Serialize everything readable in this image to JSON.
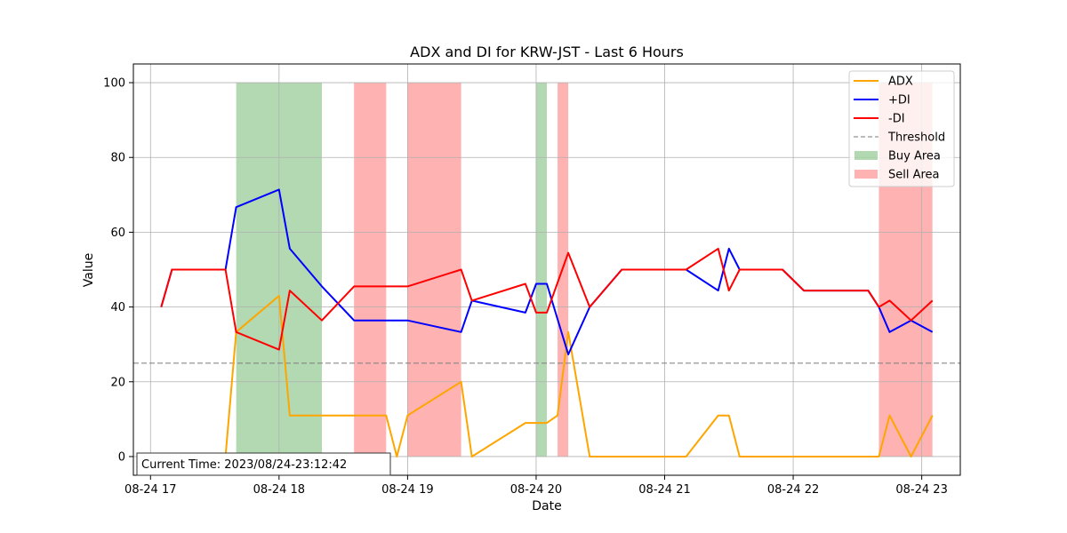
{
  "chart_data": {
    "type": "line",
    "title": "ADX and DI for KRW-JST - Last 6 Hours",
    "xlabel": "Date",
    "ylabel": "Value",
    "x_range": [
      "2023-08-24 16:52",
      "2023-08-24 23:18"
    ],
    "ylim": [
      -5,
      105
    ],
    "x_ticks": [
      {
        "t": "2023-08-24 17:00",
        "label": "08-24 17"
      },
      {
        "t": "2023-08-24 18:00",
        "label": "08-24 18"
      },
      {
        "t": "2023-08-24 19:00",
        "label": "08-24 19"
      },
      {
        "t": "2023-08-24 20:00",
        "label": "08-24 20"
      },
      {
        "t": "2023-08-24 21:00",
        "label": "08-24 21"
      },
      {
        "t": "2023-08-24 22:00",
        "label": "08-24 22"
      },
      {
        "t": "2023-08-24 23:00",
        "label": "08-24 23"
      }
    ],
    "y_ticks": [
      0,
      20,
      40,
      60,
      80,
      100
    ],
    "grid": true,
    "legend_position": "top-right",
    "series": [
      {
        "name": "ADX",
        "color": "#ffa500",
        "points": [
          [
            "2023-08-24 17:05",
            0
          ],
          [
            "2023-08-24 17:35",
            0
          ],
          [
            "2023-08-24 17:40",
            33.3
          ],
          [
            "2023-08-24 18:00",
            43.0
          ],
          [
            "2023-08-24 18:05",
            11.0
          ],
          [
            "2023-08-24 18:35",
            11.0
          ],
          [
            "2023-08-24 18:50",
            11.0
          ],
          [
            "2023-08-24 18:55",
            0
          ],
          [
            "2023-08-24 19:00",
            11.0
          ],
          [
            "2023-08-24 19:25",
            20.0
          ],
          [
            "2023-08-24 19:30",
            0
          ],
          [
            "2023-08-24 19:55",
            9.0
          ],
          [
            "2023-08-24 20:05",
            9.0
          ],
          [
            "2023-08-24 20:10",
            11.0
          ],
          [
            "2023-08-24 20:15",
            33.3
          ],
          [
            "2023-08-24 20:25",
            0
          ],
          [
            "2023-08-24 21:10",
            0
          ],
          [
            "2023-08-24 21:25",
            11.0
          ],
          [
            "2023-08-24 21:30",
            11.0
          ],
          [
            "2023-08-24 21:35",
            0
          ],
          [
            "2023-08-24 22:40",
            0
          ],
          [
            "2023-08-24 22:45",
            11.0
          ],
          [
            "2023-08-24 22:55",
            0
          ],
          [
            "2023-08-24 23:05",
            11.0
          ]
        ]
      },
      {
        "name": "+DI",
        "color": "#0000ff",
        "points": [
          [
            "2023-08-24 17:05",
            40.0
          ],
          [
            "2023-08-24 17:10",
            50.0
          ],
          [
            "2023-08-24 17:35",
            50.0
          ],
          [
            "2023-08-24 17:40",
            66.7
          ],
          [
            "2023-08-24 18:00",
            71.4
          ],
          [
            "2023-08-24 18:05",
            55.6
          ],
          [
            "2023-08-24 18:20",
            45.5
          ],
          [
            "2023-08-24 18:35",
            36.4
          ],
          [
            "2023-08-24 18:50",
            36.4
          ],
          [
            "2023-08-24 19:00",
            36.4
          ],
          [
            "2023-08-24 19:25",
            33.3
          ],
          [
            "2023-08-24 19:30",
            41.7
          ],
          [
            "2023-08-24 19:55",
            38.5
          ],
          [
            "2023-08-24 20:00",
            46.2
          ],
          [
            "2023-08-24 20:05",
            46.2
          ],
          [
            "2023-08-24 20:15",
            27.3
          ],
          [
            "2023-08-24 20:25",
            40.0
          ],
          [
            "2023-08-24 20:40",
            50.0
          ],
          [
            "2023-08-24 21:10",
            50.0
          ],
          [
            "2023-08-24 21:25",
            44.4
          ],
          [
            "2023-08-24 21:30",
            55.6
          ],
          [
            "2023-08-24 21:35",
            50.0
          ],
          [
            "2023-08-24 21:55",
            50.0
          ],
          [
            "2023-08-24 22:05",
            44.4
          ],
          [
            "2023-08-24 22:35",
            44.4
          ],
          [
            "2023-08-24 22:40",
            40.0
          ],
          [
            "2023-08-24 22:45",
            33.3
          ],
          [
            "2023-08-24 22:55",
            36.4
          ],
          [
            "2023-08-24 23:05",
            33.3
          ]
        ]
      },
      {
        "name": "-DI",
        "color": "#ff0000",
        "points": [
          [
            "2023-08-24 17:05",
            40.0
          ],
          [
            "2023-08-24 17:10",
            50.0
          ],
          [
            "2023-08-24 17:35",
            50.0
          ],
          [
            "2023-08-24 17:40",
            33.3
          ],
          [
            "2023-08-24 18:00",
            28.6
          ],
          [
            "2023-08-24 18:05",
            44.4
          ],
          [
            "2023-08-24 18:20",
            36.4
          ],
          [
            "2023-08-24 18:35",
            45.5
          ],
          [
            "2023-08-24 18:50",
            45.5
          ],
          [
            "2023-08-24 19:00",
            45.5
          ],
          [
            "2023-08-24 19:25",
            50.0
          ],
          [
            "2023-08-24 19:30",
            41.7
          ],
          [
            "2023-08-24 19:55",
            46.2
          ],
          [
            "2023-08-24 20:00",
            38.5
          ],
          [
            "2023-08-24 20:05",
            38.5
          ],
          [
            "2023-08-24 20:15",
            54.5
          ],
          [
            "2023-08-24 20:25",
            40.0
          ],
          [
            "2023-08-24 20:40",
            50.0
          ],
          [
            "2023-08-24 21:10",
            50.0
          ],
          [
            "2023-08-24 21:25",
            55.6
          ],
          [
            "2023-08-24 21:30",
            44.4
          ],
          [
            "2023-08-24 21:35",
            50.0
          ],
          [
            "2023-08-24 21:55",
            50.0
          ],
          [
            "2023-08-24 22:05",
            44.4
          ],
          [
            "2023-08-24 22:35",
            44.4
          ],
          [
            "2023-08-24 22:40",
            40.0
          ],
          [
            "2023-08-24 22:45",
            41.7
          ],
          [
            "2023-08-24 22:55",
            36.4
          ],
          [
            "2023-08-24 23:05",
            41.7
          ]
        ]
      }
    ],
    "threshold": {
      "name": "Threshold",
      "value": 25,
      "color": "#808080",
      "style": "dashed"
    },
    "areas": [
      {
        "kind": "buy",
        "name": "Buy Area",
        "color": "#008000",
        "opacity": 0.3,
        "from": "2023-08-24 17:40",
        "to": "2023-08-24 18:20"
      },
      {
        "kind": "sell",
        "name": "Sell Area",
        "color": "#ff0000",
        "opacity": 0.3,
        "from": "2023-08-24 18:35",
        "to": "2023-08-24 18:50"
      },
      {
        "kind": "sell",
        "name": "Sell Area",
        "color": "#ff0000",
        "opacity": 0.3,
        "from": "2023-08-24 19:00",
        "to": "2023-08-24 19:25"
      },
      {
        "kind": "buy",
        "name": "Buy Area",
        "color": "#008000",
        "opacity": 0.3,
        "from": "2023-08-24 20:00",
        "to": "2023-08-24 20:05"
      },
      {
        "kind": "sell",
        "name": "Sell Area",
        "color": "#ff0000",
        "opacity": 0.3,
        "from": "2023-08-24 20:10",
        "to": "2023-08-24 20:15"
      },
      {
        "kind": "sell",
        "name": "Sell Area",
        "color": "#ff0000",
        "opacity": 0.3,
        "from": "2023-08-24 22:40",
        "to": "2023-08-24 23:05"
      }
    ],
    "area_range": [
      0,
      100
    ],
    "legend": [
      {
        "label": "ADX",
        "kind": "line",
        "color": "#ffa500"
      },
      {
        "label": "+DI",
        "kind": "line",
        "color": "#0000ff"
      },
      {
        "label": "-DI",
        "kind": "line",
        "color": "#ff0000"
      },
      {
        "label": "Threshold",
        "kind": "dashed",
        "color": "#808080"
      },
      {
        "label": "Buy Area",
        "kind": "patch",
        "color": "#008000"
      },
      {
        "label": "Sell Area",
        "kind": "patch",
        "color": "#ff0000"
      }
    ],
    "annotation": "Current Time: 2023/08/24-23:12:42"
  }
}
